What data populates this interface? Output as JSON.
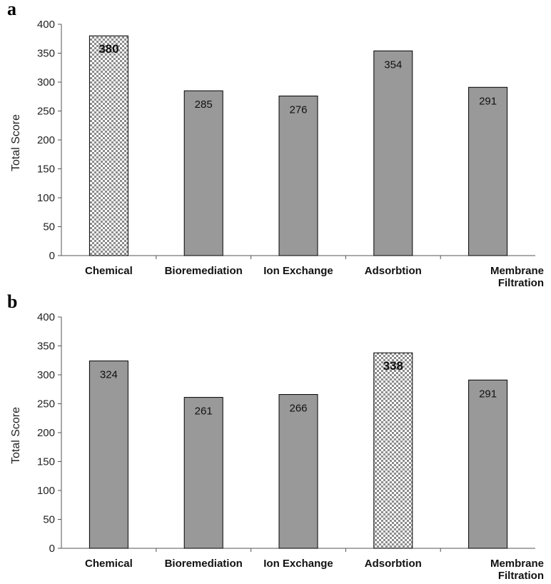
{
  "chart_data": [
    {
      "panel_label": "a",
      "type": "bar",
      "ylabel": "Total Score",
      "ylim": [
        0,
        400
      ],
      "yticks": [
        "0",
        "50",
        "100",
        "150",
        "200",
        "250",
        "300",
        "350",
        "400"
      ],
      "categories": [
        "Chemical",
        "Bioremediation",
        "Ion Exchange",
        "Adsorbtion",
        "Membrane Filtration"
      ],
      "category_lines": [
        [
          "Chemical"
        ],
        [
          "Bioremediation"
        ],
        [
          "Ion Exchange"
        ],
        [
          "Adsorbtion"
        ],
        [
          "Membrane",
          "Filtration"
        ]
      ],
      "values": [
        380,
        285,
        276,
        354,
        291
      ],
      "value_labels": [
        "380",
        "285",
        "276",
        "354",
        "291"
      ],
      "highlight_index": 0,
      "bar_color": "#999999",
      "highlight_pattern": "checkered"
    },
    {
      "panel_label": "b",
      "type": "bar",
      "ylabel": "Total Score",
      "ylim": [
        0,
        400
      ],
      "yticks": [
        "0",
        "50",
        "100",
        "150",
        "200",
        "250",
        "300",
        "350",
        "400"
      ],
      "categories": [
        "Chemical",
        "Bioremediation",
        "Ion Exchange",
        "Adsorbtion",
        "Membrane Filtration"
      ],
      "category_lines": [
        [
          "Chemical"
        ],
        [
          "Bioremediation"
        ],
        [
          "Ion Exchange"
        ],
        [
          "Adsorbtion"
        ],
        [
          "Membrane",
          "Filtration"
        ]
      ],
      "values": [
        324,
        261,
        266,
        338,
        291
      ],
      "value_labels": [
        "324",
        "261",
        "266",
        "338",
        "291"
      ],
      "highlight_index": 3,
      "bar_color": "#999999",
      "highlight_pattern": "checkered"
    }
  ]
}
